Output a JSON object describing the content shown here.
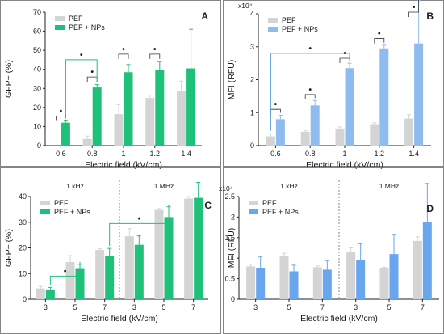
{
  "colors": {
    "pef": "#d4d4d4",
    "pef_np_green": "#1fc07a",
    "pef_np_blue": "#8fbcf0",
    "pef_np_blue_d": "#6aa6ee",
    "sig_green": "#1fc07a",
    "sig_blue": "#5b9ee8"
  },
  "chart_data": [
    {
      "panel": "A",
      "type": "bar",
      "xlabel": "Electric field (kV/cm)",
      "ylabel": "GFP+ (%)",
      "categories": [
        "0.6",
        "0.8",
        "1",
        "1.2",
        "1.4"
      ],
      "ylim": [
        0,
        70
      ],
      "yticks": [
        "0",
        "10",
        "20",
        "30",
        "40",
        "50",
        "60",
        "70"
      ],
      "legend_position": "top-left",
      "series": [
        {
          "name": "PEF",
          "values": [
            0,
            3.5,
            16.5,
            25,
            28.8
          ],
          "errors": [
            0,
            1.5,
            5,
            1.5,
            5
          ]
        },
        {
          "name": "PEF + NPs",
          "values": [
            12,
            30.5,
            38.5,
            39.5,
            40.5
          ],
          "errors": [
            1,
            1.5,
            4,
            4.5,
            20.5
          ]
        }
      ],
      "significance": [
        "•",
        "•",
        "•",
        "•",
        "•",
        "•"
      ]
    },
    {
      "panel": "B",
      "type": "bar",
      "xlabel": "Electric field (kV/cm)",
      "ylabel": "MFI (RFU)",
      "y_multiplier": "x10⁴",
      "categories": [
        "0.6",
        "0.8",
        "1",
        "1.2",
        "1.4"
      ],
      "ylim": [
        0,
        4
      ],
      "yticks": [
        "0",
        "1",
        "2",
        "3",
        "4"
      ],
      "legend_position": "top-left",
      "series": [
        {
          "name": "PEF",
          "values": [
            0.28,
            0.42,
            0.52,
            0.65,
            0.82
          ],
          "errors": [
            0.1,
            0.03,
            0.05,
            0.04,
            0.12
          ]
        },
        {
          "name": "PEF + NPs",
          "values": [
            0.8,
            1.22,
            2.35,
            2.95,
            3.1
          ],
          "errors": [
            0.12,
            0.15,
            0.15,
            0.1,
            1.3
          ]
        }
      ],
      "significance": [
        "•",
        "•",
        "•",
        "•",
        "•",
        "•"
      ]
    },
    {
      "panel": "C",
      "type": "bar",
      "xlabel": "Electric field (kV/cm)",
      "ylabel": "GFP+ (%)",
      "group_labels": [
        "1 kHz",
        "1 MHz"
      ],
      "categories": [
        "3",
        "5",
        "7",
        "3",
        "5",
        "7"
      ],
      "ylim": [
        0,
        40
      ],
      "yticks": [
        "0",
        "10",
        "20",
        "30",
        "40"
      ],
      "legend_position": "top-left",
      "series": [
        {
          "name": "PEF",
          "values": [
            4.2,
            14.5,
            19.2,
            24.5,
            34.8,
            39.2
          ],
          "errors": [
            0.8,
            2.5,
            0.5,
            3,
            0.5,
            0.8
          ]
        },
        {
          "name": "PEF + NPs",
          "values": [
            3.8,
            11.8,
            16.8,
            21.2,
            32,
            39.5
          ],
          "errors": [
            0.8,
            1.8,
            3,
            3.5,
            4,
            6
          ]
        }
      ],
      "significance": [
        "•",
        "•"
      ]
    },
    {
      "panel": "D",
      "type": "bar",
      "xlabel": "Electric field (kV/cm)",
      "ylabel": "MFI (RFU)",
      "y_multiplier": "x10⁴",
      "group_labels": [
        "1 kHz",
        "1 MHz"
      ],
      "categories": [
        "3",
        "5",
        "7",
        "3",
        "5",
        "7"
      ],
      "ylim": [
        0,
        2.5
      ],
      "yticks": [
        "0",
        "0.5",
        "1",
        "1.5",
        "2",
        "2.5"
      ],
      "legend_position": "top-left",
      "series": [
        {
          "name": "PEF",
          "values": [
            0.8,
            1.05,
            0.78,
            1.15,
            0.75,
            1.42
          ],
          "errors": [
            0.05,
            0.07,
            0.03,
            0.1,
            0.03,
            0.1
          ]
        },
        {
          "name": "PEF + NPs",
          "values": [
            0.75,
            0.68,
            0.72,
            0.95,
            1.1,
            1.87
          ],
          "errors": [
            0.28,
            0.15,
            0.22,
            0.4,
            0.48,
            0.95
          ]
        }
      ]
    }
  ]
}
